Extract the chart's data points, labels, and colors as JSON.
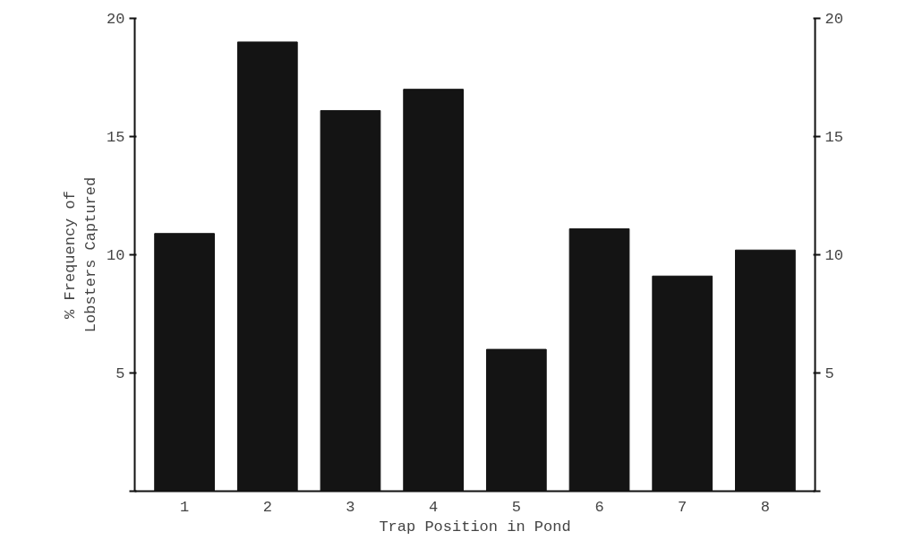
{
  "chart_data": {
    "type": "bar",
    "xlabel": "Trap Position in Pond",
    "ylabel": "% Frequency of\nLobsters Captured",
    "categories": [
      "1",
      "2",
      "3",
      "4",
      "5",
      "6",
      "7",
      "8"
    ],
    "values": [
      10.9,
      19.0,
      16.1,
      17.0,
      6.0,
      11.1,
      9.1,
      10.2
    ],
    "color": "#141414",
    "ylim": [
      0,
      20
    ],
    "yticks": [
      {
        "value": 0,
        "label": null
      },
      5,
      10,
      15,
      20
    ],
    "y2lim": [
      0,
      20
    ],
    "y2ticks": [
      {
        "value": 0,
        "label": null
      },
      5,
      10,
      15,
      20
    ],
    "grid": false
  }
}
